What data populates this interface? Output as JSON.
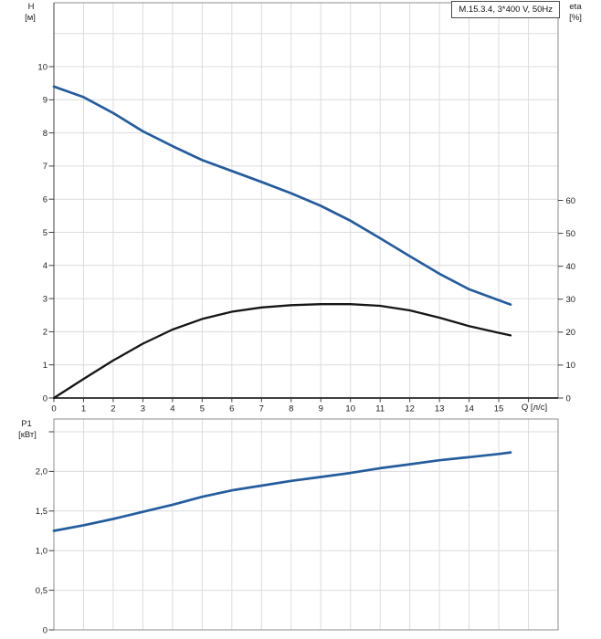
{
  "model_box": {
    "label": "M.15.3.4, 3*400 V, 50Hz"
  },
  "labels": {
    "h_axis_title": "H",
    "h_axis_unit": "[м]",
    "eta_axis_title": "eta",
    "eta_axis_unit": "[%]",
    "p1_axis_title": "P1",
    "p1_axis_unit": "[кВт]",
    "q_axis_label": "Q [л/с]"
  },
  "colors": {
    "curve_blue": "#245c9e",
    "curve_black": "#161616",
    "grid": "#dcdcdc",
    "border": "#8c8c8c",
    "axis_dark": "#3f3f3f",
    "zero_axis": "#000000",
    "text": "#1c1c1c"
  },
  "chart_data": [
    {
      "type": "line",
      "title": "M.15.3.4, 3*400 V, 50Hz",
      "xlabel": "Q [л/с]",
      "ylabel_left": "H [м]",
      "ylabel_right": "eta [%]",
      "xlim": [
        0,
        17
      ],
      "ylim_left": [
        0,
        12
      ],
      "ylim_right": [
        0,
        120
      ],
      "grid": true,
      "legend": "none",
      "x_tick_values": [
        0,
        1,
        2,
        3,
        4,
        5,
        6,
        7,
        8,
        9,
        10,
        11,
        12,
        13,
        14,
        15
      ],
      "x_tick_labels": [
        "0",
        "1",
        "2",
        "3",
        "4",
        "5",
        "6",
        "7",
        "8",
        "9",
        "10",
        "11",
        "12",
        "13",
        "14",
        "15"
      ],
      "left_tick_values": [
        0,
        1,
        2,
        3,
        4,
        5,
        6,
        7,
        8,
        9,
        10
      ],
      "left_tick_labels": [
        "0",
        "1",
        "2",
        "3",
        "4",
        "5",
        "6",
        "7",
        "8",
        "9",
        "10"
      ],
      "right_tick_values": [
        0,
        10,
        20,
        30,
        40,
        50,
        60
      ],
      "right_tick_labels": [
        "0",
        "10",
        "20",
        "30",
        "40",
        "50",
        "60"
      ],
      "x": [
        0,
        1,
        2,
        3,
        4,
        5,
        6,
        7,
        8,
        9,
        10,
        11,
        12,
        13,
        14,
        15,
        15.4
      ],
      "series": [
        {
          "name": "head-curve-H(Q)",
          "axis": "left",
          "color_key": "curve_blue",
          "width": 2.7,
          "values": [
            9.4,
            9.08,
            8.6,
            8.05,
            7.6,
            7.18,
            6.85,
            6.52,
            6.18,
            5.8,
            5.35,
            4.82,
            4.28,
            3.75,
            3.28,
            2.95,
            2.82
          ]
        },
        {
          "name": "efficiency-curve-eta(Q)",
          "axis": "right",
          "color_key": "curve_black",
          "width": 2.3,
          "values": [
            0,
            5.8,
            11.4,
            16.5,
            20.8,
            24.0,
            26.2,
            27.5,
            28.2,
            28.5,
            28.5,
            28.0,
            26.6,
            24.4,
            21.8,
            19.8,
            19.0
          ]
        }
      ]
    },
    {
      "type": "line",
      "title": "",
      "xlabel": "Q [л/с]",
      "ylabel": "P1 [кВт]",
      "xlim": [
        0,
        17
      ],
      "ylim": [
        0,
        2.66
      ],
      "grid": true,
      "legend": "none",
      "y_tick_values": [
        0,
        0.5,
        1.0,
        1.5,
        2.0
      ],
      "y_tick_labels": [
        "0",
        "0,5",
        "1,0",
        "1,5",
        "2,0"
      ],
      "y_grid_values": [
        0.5,
        1.0,
        1.5,
        2.0,
        2.5
      ],
      "x": [
        0,
        1,
        2,
        3,
        4,
        5,
        6,
        7,
        8,
        9,
        10,
        11,
        12,
        13,
        14,
        15,
        15.4
      ],
      "series": [
        {
          "name": "power-curve-P1(Q)",
          "color_key": "curve_blue",
          "width": 2.7,
          "values": [
            1.25,
            1.32,
            1.4,
            1.49,
            1.58,
            1.68,
            1.76,
            1.82,
            1.88,
            1.93,
            1.98,
            2.04,
            2.09,
            2.14,
            2.18,
            2.22,
            2.24
          ]
        }
      ]
    }
  ]
}
